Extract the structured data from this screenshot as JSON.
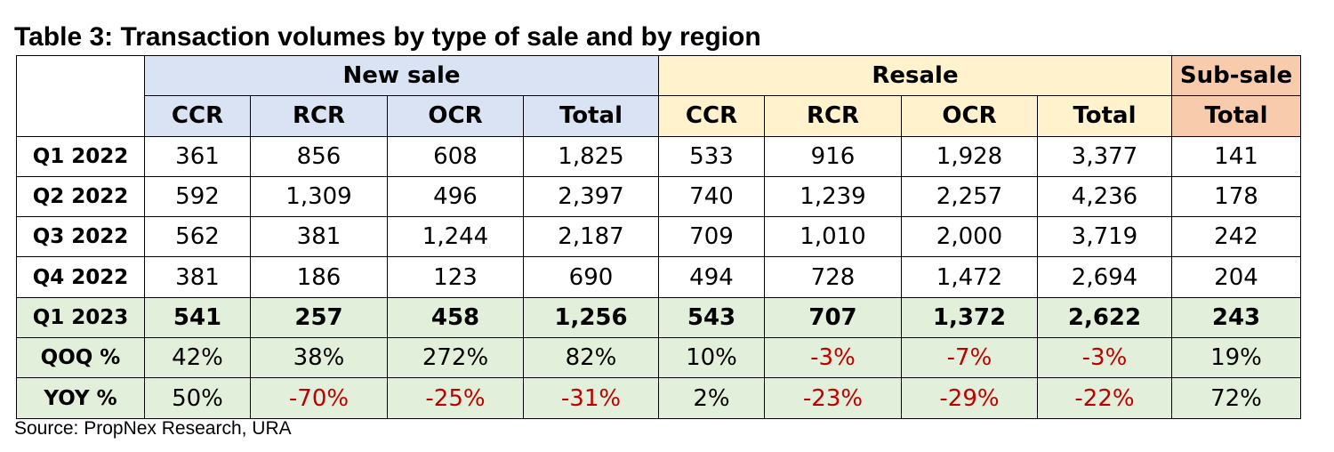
{
  "title": "Table 3: Transaction volumes by type of sale and by region",
  "groups": {
    "new_sale": "New sale",
    "resale": "Resale",
    "sub_sale": "Sub-sale"
  },
  "columns": [
    "CCR",
    "RCR",
    "OCR",
    "Total",
    "CCR",
    "RCR",
    "OCR",
    "Total",
    "Total"
  ],
  "rows": [
    {
      "label": "Q1 2022",
      "values": [
        "361",
        "856",
        "608",
        "1,825",
        "533",
        "916",
        "1,928",
        "3,377",
        "141"
      ]
    },
    {
      "label": "Q2 2022",
      "values": [
        "592",
        "1,309",
        "496",
        "2,397",
        "740",
        "1,239",
        "2,257",
        "4,236",
        "178"
      ]
    },
    {
      "label": "Q3 2022",
      "values": [
        "562",
        "381",
        "1,244",
        "2,187",
        "709",
        "1,010",
        "2,000",
        "3,719",
        "242"
      ]
    },
    {
      "label": "Q4 2022",
      "values": [
        "381",
        "186",
        "123",
        "690",
        "494",
        "728",
        "1,472",
        "2,694",
        "204"
      ]
    },
    {
      "label": "Q1 2023",
      "values": [
        "541",
        "257",
        "458",
        "1,256",
        "543",
        "707",
        "1,372",
        "2,622",
        "243"
      ]
    },
    {
      "label": "QOQ %",
      "values": [
        "42%",
        "38%",
        "272%",
        "82%",
        "10%",
        "-3%",
        "-7%",
        "-3%",
        "19%"
      ]
    },
    {
      "label": "YOY %",
      "values": [
        "50%",
        "-70%",
        "-25%",
        "-31%",
        "2%",
        "-23%",
        "-29%",
        "-22%",
        "72%"
      ]
    }
  ],
  "colors": {
    "new_sale_bg": "#dae3f3",
    "resale_bg": "#fff2cc",
    "sub_sale_bg": "#f8cbad",
    "highlight_bg": "#e2efda",
    "negative_text": "#c00000"
  },
  "source": "Source: PropNex Research, URA"
}
